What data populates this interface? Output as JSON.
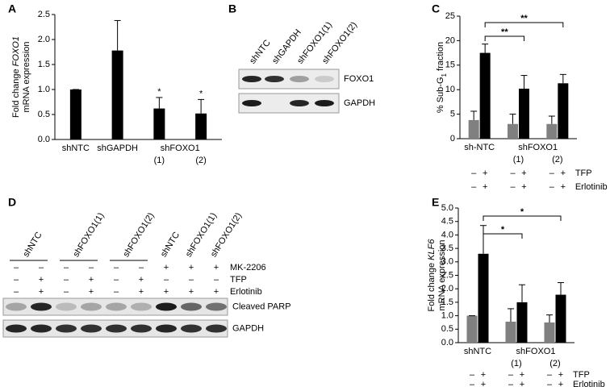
{
  "chart_data": [
    {
      "type": "bar",
      "panel": "A",
      "y_label": [
        [
          {
            "text": "Fold change "
          },
          {
            "text": "FOXO1",
            "italic": true
          }
        ],
        [
          {
            "text": "mRNA expression"
          }
        ]
      ],
      "categories": [
        "shNTC",
        "shGAPDH",
        "(1)",
        "(2)"
      ],
      "group_label": "shFOXO1",
      "values": [
        1.0,
        1.78,
        0.62,
        0.52
      ],
      "errors": [
        0,
        0.6,
        0.22,
        0.28
      ],
      "color": "#000000",
      "annotations": [
        "*",
        "*"
      ],
      "ylim": [
        0,
        2.5
      ],
      "yticks": [
        {
          "value": 0,
          "label": "0.0"
        },
        {
          "value": 0.5,
          "label": "0.5"
        },
        {
          "value": 1,
          "label": "1.0"
        },
        {
          "value": 1.5,
          "label": "1.5"
        },
        {
          "value": 2,
          "label": "2.0"
        },
        {
          "value": 2.5,
          "label": "2.5"
        }
      ]
    },
    {
      "type": "grouped_bar",
      "panel": "C",
      "y_label": [
        [
          {
            "text": "% Sub-G"
          },
          {
            "text": "1",
            "sub": true
          },
          {
            "text": " fraction"
          }
        ]
      ],
      "categories": [
        "sh-NTC",
        "(1)",
        "(2)"
      ],
      "group_label": "shFOXO1",
      "series": [
        {
          "color": "#808080",
          "values": [
            3.8,
            3.0,
            3.0
          ],
          "errors": [
            1.8,
            2.0,
            1.6
          ]
        },
        {
          "color": "#000000",
          "values": [
            17.5,
            10.2,
            11.3
          ],
          "errors": [
            1.8,
            2.7,
            1.8
          ]
        }
      ],
      "annotations": [
        "**",
        "**"
      ],
      "treatments": [
        {
          "name": "TFP",
          "signs": [
            "–",
            "+",
            "–",
            "+",
            "–",
            "+"
          ]
        },
        {
          "name": "Erlotinib",
          "signs": [
            "–",
            "+",
            "–",
            "+",
            "–",
            "+"
          ]
        }
      ],
      "ylim": [
        0,
        25
      ],
      "yticks": [
        0,
        5,
        10,
        15,
        20,
        25
      ]
    },
    {
      "type": "grouped_bar",
      "panel": "E",
      "y_label": [
        [
          {
            "text": "Fold change "
          },
          {
            "text": "KLF6",
            "italic": true
          }
        ],
        [
          {
            "text": "mRNA expression"
          }
        ]
      ],
      "categories": [
        "shNTC",
        "(1)",
        "(2)"
      ],
      "group_label": "shFOXO1",
      "series": [
        {
          "color": "#808080",
          "values": [
            1.0,
            0.78,
            0.75
          ],
          "errors": [
            0,
            0.48,
            0.28
          ]
        },
        {
          "color": "#000000",
          "values": [
            3.3,
            1.5,
            1.78
          ],
          "errors": [
            1.05,
            0.65,
            0.45
          ]
        }
      ],
      "annotations": [
        "*",
        "*"
      ],
      "treatments": [
        {
          "name": "TFP",
          "signs": [
            "–",
            "+",
            "–",
            "+",
            "–",
            "+"
          ]
        },
        {
          "name": "Erlotinib",
          "signs": [
            "–",
            "+",
            "–",
            "+",
            "–",
            "+"
          ]
        }
      ],
      "ylim": [
        0,
        5
      ],
      "yticks": [
        {
          "value": 0,
          "label": "0.0"
        },
        {
          "value": 0.5,
          "label": "0.5"
        },
        {
          "value": 1,
          "label": "1.0"
        },
        {
          "value": 1.5,
          "label": "1.5"
        },
        {
          "value": 2,
          "label": "2.0"
        },
        {
          "value": 2.5,
          "label": "2.5"
        },
        {
          "value": 3,
          "label": "3.0"
        },
        {
          "value": 3.5,
          "label": "3.5"
        },
        {
          "value": 4,
          "label": "4.0"
        },
        {
          "value": 4.5,
          "label": "4.5"
        },
        {
          "value": 5,
          "label": "5.0"
        }
      ]
    }
  ],
  "blot_b": {
    "panel": "B",
    "lanes": [
      "shNTC",
      "shGAPDH",
      "shFOXO1(1)",
      "shFOXO1(2)"
    ],
    "rows": [
      "FOXO1",
      "GAPDH"
    ]
  },
  "blot_d": {
    "panel": "D",
    "lane_labels": [
      "shNTC",
      "shFOXO1(1)",
      "shFOXO1(2)",
      "shNTC",
      "shFOXO1(1)",
      "shFOXO1(2)"
    ],
    "treatments": [
      {
        "name": "MK-2206",
        "signs": [
          "–",
          "–",
          "–",
          "–",
          "–",
          "–",
          "+",
          "+",
          "+"
        ]
      },
      {
        "name": "TFP",
        "signs": [
          "–",
          "+",
          "–",
          "+",
          "–",
          "+",
          "–",
          "–",
          "–"
        ]
      },
      {
        "name": "Erlotinib",
        "signs": [
          "–",
          "+",
          "–",
          "+",
          "–",
          "+",
          "+",
          "+",
          "+"
        ]
      }
    ],
    "rows": [
      "Cleaved PARP",
      "GAPDH"
    ]
  }
}
